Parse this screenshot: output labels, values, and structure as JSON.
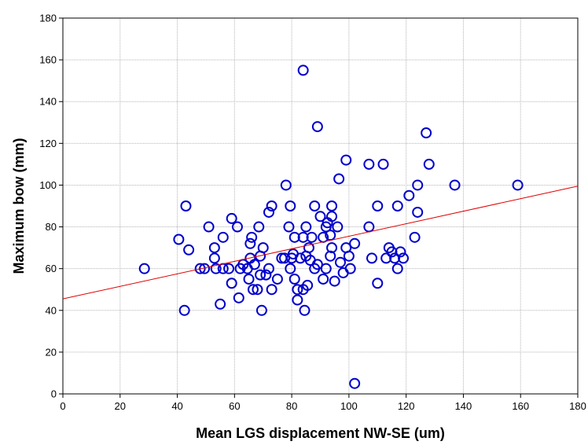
{
  "chart_data": {
    "type": "scatter",
    "title": "",
    "xlabel": "Mean LGS displacement NW-SE (um)",
    "ylabel": "Maximum bow (mm)",
    "xlim": [
      0,
      180
    ],
    "ylim": [
      0,
      180
    ],
    "x_ticks": [
      0,
      20,
      40,
      60,
      80,
      100,
      120,
      140,
      160,
      180
    ],
    "y_ticks": [
      0,
      20,
      40,
      60,
      80,
      100,
      120,
      140,
      160,
      180
    ],
    "grid": true,
    "legend": "none",
    "marker_color": "#0000cc",
    "fit_line_color": "#e00000",
    "fit_line": {
      "x": [
        0,
        180
      ],
      "y": [
        45.5,
        99.5
      ]
    },
    "series": [
      {
        "points": [
          [
            28.5,
            60
          ],
          [
            40.5,
            74
          ],
          [
            42.5,
            40
          ],
          [
            43,
            90
          ],
          [
            44,
            69
          ],
          [
            48,
            60
          ],
          [
            49.5,
            60
          ],
          [
            51,
            80
          ],
          [
            53,
            65
          ],
          [
            53,
            70
          ],
          [
            53.5,
            60
          ],
          [
            55,
            43
          ],
          [
            56,
            75
          ],
          [
            56,
            60
          ],
          [
            58,
            60
          ],
          [
            59,
            84
          ],
          [
            59,
            53
          ],
          [
            61,
            80
          ],
          [
            61.5,
            46
          ],
          [
            62,
            60
          ],
          [
            63,
            62
          ],
          [
            64.5,
            60
          ],
          [
            65,
            55
          ],
          [
            65.5,
            65
          ],
          [
            65.5,
            72
          ],
          [
            66,
            75
          ],
          [
            66.5,
            50
          ],
          [
            67,
            62
          ],
          [
            68,
            50
          ],
          [
            68.5,
            80
          ],
          [
            69,
            57
          ],
          [
            69,
            66
          ],
          [
            69.5,
            40
          ],
          [
            70,
            70
          ],
          [
            71,
            57
          ],
          [
            72,
            60
          ],
          [
            72,
            87
          ],
          [
            73,
            90
          ],
          [
            73,
            50
          ],
          [
            75,
            55
          ],
          [
            76.5,
            65
          ],
          [
            77.5,
            65
          ],
          [
            78,
            100
          ],
          [
            79,
            80
          ],
          [
            79.5,
            90
          ],
          [
            79.5,
            60
          ],
          [
            80,
            65
          ],
          [
            80.5,
            67
          ],
          [
            81,
            55
          ],
          [
            81,
            75
          ],
          [
            82,
            50
          ],
          [
            82,
            45
          ],
          [
            83,
            65
          ],
          [
            84,
            155
          ],
          [
            84,
            75
          ],
          [
            84,
            50
          ],
          [
            84.5,
            40
          ],
          [
            85,
            80
          ],
          [
            85,
            66
          ],
          [
            85.5,
            52
          ],
          [
            86,
            70
          ],
          [
            86.5,
            64
          ],
          [
            87,
            75
          ],
          [
            88,
            60
          ],
          [
            88,
            90
          ],
          [
            89,
            128
          ],
          [
            89,
            62
          ],
          [
            90,
            85
          ],
          [
            91,
            75
          ],
          [
            91,
            55
          ],
          [
            92,
            80
          ],
          [
            92,
            60
          ],
          [
            92.5,
            82
          ],
          [
            93.5,
            66
          ],
          [
            93.5,
            76
          ],
          [
            94,
            90
          ],
          [
            94,
            85
          ],
          [
            94,
            70
          ],
          [
            95,
            54
          ],
          [
            96,
            80
          ],
          [
            96.5,
            103
          ],
          [
            97,
            63
          ],
          [
            98,
            58
          ],
          [
            99,
            112
          ],
          [
            99,
            70
          ],
          [
            100,
            66
          ],
          [
            100.5,
            60
          ],
          [
            102,
            72
          ],
          [
            102,
            5
          ],
          [
            107,
            110
          ],
          [
            107,
            80
          ],
          [
            108,
            65
          ],
          [
            110,
            90
          ],
          [
            110,
            53
          ],
          [
            112,
            110
          ],
          [
            113,
            65
          ],
          [
            114,
            70
          ],
          [
            115,
            68
          ],
          [
            116,
            65
          ],
          [
            117,
            60
          ],
          [
            117,
            90
          ],
          [
            118,
            68
          ],
          [
            119,
            65
          ],
          [
            121,
            95
          ],
          [
            123,
            75
          ],
          [
            124,
            87
          ],
          [
            124,
            100
          ],
          [
            127,
            125
          ],
          [
            128,
            110
          ],
          [
            137,
            100
          ],
          [
            159,
            100
          ]
        ]
      }
    ]
  }
}
